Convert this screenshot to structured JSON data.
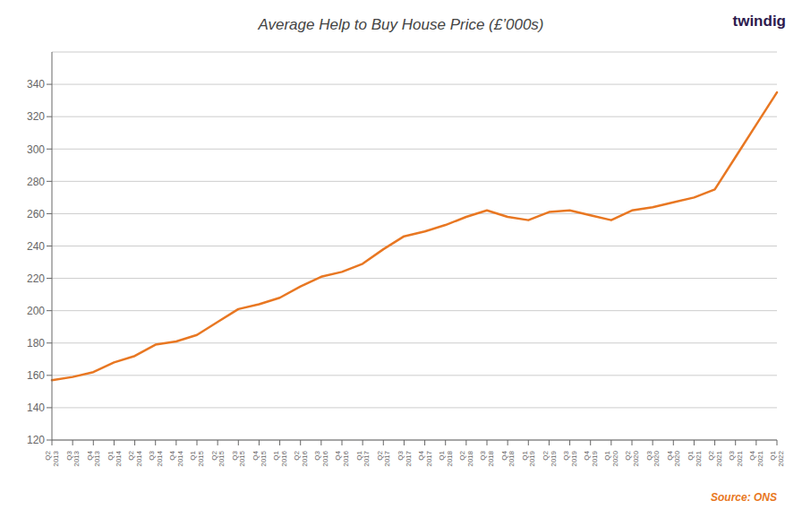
{
  "chart_data": {
    "type": "line",
    "title": "Average Help to Buy House Price (£’000s)",
    "categories": [
      "Q2\n2013",
      "Q3\n2013",
      "Q4\n2013",
      "Q1\n2014",
      "Q2\n2014",
      "Q3\n2014",
      "Q4\n2014",
      "Q1\n2015",
      "Q2\n2015",
      "Q3\n2015",
      "Q4\n2015",
      "Q1\n2016",
      "Q2\n2016",
      "Q3\n2016",
      "Q4\n2016",
      "Q1\n2017",
      "Q2\n2017",
      "Q3\n2017",
      "Q4\n2017",
      "Q1\n2018",
      "Q2\n2018",
      "Q3\n2018",
      "Q4\n2018",
      "Q1\n2019",
      "Q2\n2019",
      "Q3\n2019",
      "Q4\n2019",
      "Q1\n2020",
      "Q2\n2020",
      "Q3\n2020",
      "Q4\n2020",
      "Q1\n2021",
      "Q2\n2021",
      "Q3\n2021",
      "Q4\n2021",
      "Q1\n2022"
    ],
    "values": [
      157,
      159,
      162,
      168,
      172,
      179,
      181,
      185,
      193,
      201,
      204,
      208,
      215,
      221,
      224,
      229,
      238,
      246,
      249,
      253,
      258,
      262,
      258,
      256,
      261,
      262,
      259,
      256,
      262,
      264,
      267,
      270,
      275,
      295,
      315,
      335
    ],
    "color": "#E87722",
    "ylim": [
      120,
      360
    ],
    "yticks": [
      120,
      140,
      160,
      180,
      200,
      220,
      240,
      260,
      280,
      300,
      320,
      340
    ],
    "grid": true,
    "annotations": [
      "Source: ONS",
      "twindig"
    ]
  }
}
